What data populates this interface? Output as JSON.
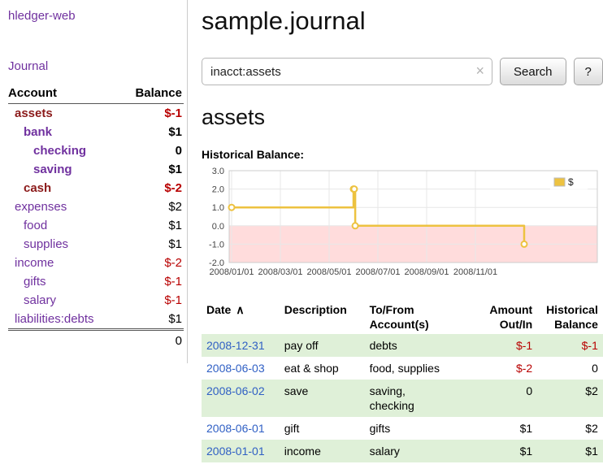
{
  "app": {
    "title": "hledger-web"
  },
  "sidebar": {
    "journal_link": "Journal",
    "accounts_header": {
      "account": "Account",
      "balance": "Balance"
    },
    "accounts": [
      {
        "name": "assets",
        "balance": "$-1"
      },
      {
        "name": "bank",
        "balance": "$1"
      },
      {
        "name": "checking",
        "balance": "0"
      },
      {
        "name": "saving",
        "balance": "$1"
      },
      {
        "name": "cash",
        "balance": "$-2"
      },
      {
        "name": "expenses",
        "balance": "$2"
      },
      {
        "name": "food",
        "balance": "$1"
      },
      {
        "name": "supplies",
        "balance": "$1"
      },
      {
        "name": "income",
        "balance": "$-2"
      },
      {
        "name": "gifts",
        "balance": "$-1"
      },
      {
        "name": "salary",
        "balance": "$-1"
      },
      {
        "name": "liabilities:debts",
        "balance": "$1"
      }
    ],
    "total": "0"
  },
  "header": {
    "title": "sample.journal"
  },
  "search": {
    "value": "inacct:assets",
    "clear_icon": "×",
    "button_label": "Search",
    "help_label": "?"
  },
  "register": {
    "heading": "assets",
    "chart_title": "Historical Balance:",
    "table": {
      "headers": {
        "date": "Date",
        "sort_indicator": "∧",
        "description": "Description",
        "accounts": "To/From\nAccount(s)",
        "amount": "Amount\nOut/In",
        "balance": "Historical\nBalance"
      },
      "rows": [
        {
          "date": "2008-12-31",
          "description": "pay off",
          "accounts": "debts",
          "amount": "$-1",
          "balance": "$-1"
        },
        {
          "date": "2008-06-03",
          "description": "eat & shop",
          "accounts": "food, supplies",
          "amount": "$-2",
          "balance": "0"
        },
        {
          "date": "2008-06-02",
          "description": "save",
          "accounts": "saving,\nchecking",
          "amount": "0",
          "balance": "$2"
        },
        {
          "date": "2008-06-01",
          "description": "gift",
          "accounts": "gifts",
          "amount": "$1",
          "balance": "$2"
        },
        {
          "date": "2008-01-01",
          "description": "income",
          "accounts": "salary",
          "amount": "$1",
          "balance": "$1"
        }
      ]
    }
  },
  "colors": {
    "accent_purple": "#70319f",
    "maroon": "#8b1a1a",
    "negative_red": "#b80000",
    "link_blue": "#2f5fc4",
    "row_green": "#dff0d8",
    "chart_gold": "#edc240",
    "chart_negative_pink": "#ffdcdc"
  },
  "chart_data": {
    "type": "line",
    "step": true,
    "title": "Historical Balance:",
    "x_unit": "months since 2008-01-01",
    "series": [
      {
        "name": "$",
        "color": "#edc240",
        "points": [
          {
            "date": "2008-01-01",
            "x": 0,
            "y": 1
          },
          {
            "date": "2008-06-01",
            "x": 5.0,
            "y": 2
          },
          {
            "date": "2008-06-02",
            "x": 5.03,
            "y": 2
          },
          {
            "date": "2008-06-03",
            "x": 5.07,
            "y": 0
          },
          {
            "date": "2008-12-31",
            "x": 12.0,
            "y": -1
          }
        ]
      }
    ],
    "xlim": [
      -0.1,
      15.0
    ],
    "ylim": [
      -2.0,
      3.0
    ],
    "x_ticks": [
      {
        "x": 0,
        "label": "2008/01/01"
      },
      {
        "x": 2,
        "label": "2008/03/01"
      },
      {
        "x": 4,
        "label": "2008/05/01"
      },
      {
        "x": 6,
        "label": "2008/07/01"
      },
      {
        "x": 8,
        "label": "2008/09/01"
      },
      {
        "x": 10,
        "label": "2008/11/01"
      }
    ],
    "y_ticks": [
      3.0,
      2.0,
      1.0,
      0.0,
      -1.0,
      -2.0
    ],
    "grid": true,
    "legend_position": "top-right",
    "negative_region_fill": "#ffdcdc"
  }
}
